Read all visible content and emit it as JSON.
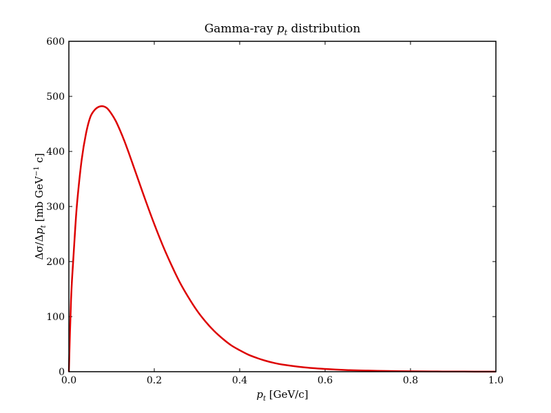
{
  "chart_data": {
    "type": "line",
    "title": {
      "prefix": "Gamma-ray ",
      "var": "p",
      "sub": "t",
      "suffix": " distribution"
    },
    "xlabel": {
      "var": "p",
      "sub": "t",
      "unit": " [GeV/c]"
    },
    "ylabel": {
      "num": "Δσ/Δ",
      "var": "p",
      "sub": "t",
      "unit_pre": " [mb GeV",
      "unit_sup": "−1",
      "unit_post": " c]"
    },
    "xlim": [
      0.0,
      1.0
    ],
    "ylim": [
      0,
      600
    ],
    "xticks": [
      "0.0",
      "0.2",
      "0.4",
      "0.6",
      "0.8",
      "1.0"
    ],
    "yticks": [
      "0",
      "100",
      "200",
      "300",
      "400",
      "500",
      "600"
    ],
    "grid": false,
    "series": [
      {
        "color": "#dd0000",
        "x": [
          0.0,
          0.005,
          0.01,
          0.015,
          0.02,
          0.03,
          0.04,
          0.05,
          0.06,
          0.07,
          0.08,
          0.09,
          0.1,
          0.11,
          0.12,
          0.13,
          0.14,
          0.15,
          0.16,
          0.18,
          0.2,
          0.22,
          0.24,
          0.26,
          0.28,
          0.3,
          0.32,
          0.34,
          0.36,
          0.38,
          0.4,
          0.42,
          0.44,
          0.46,
          0.48,
          0.5,
          0.55,
          0.6,
          0.65,
          0.7,
          0.75,
          0.8,
          0.85,
          0.9,
          0.95,
          1.0
        ],
        "y": [
          0,
          130,
          200,
          262,
          313,
          385,
          432,
          462,
          475,
          481,
          482,
          478,
          468,
          455,
          438,
          419,
          398,
          376,
          354,
          310,
          268,
          229,
          194,
          162,
          135,
          111,
          91,
          74,
          60,
          48,
          39,
          31,
          25,
          20,
          16,
          13,
          8,
          5,
          3,
          2,
          1.2,
          0.8,
          0.5,
          0.3,
          0.2,
          0.1
        ]
      }
    ]
  }
}
